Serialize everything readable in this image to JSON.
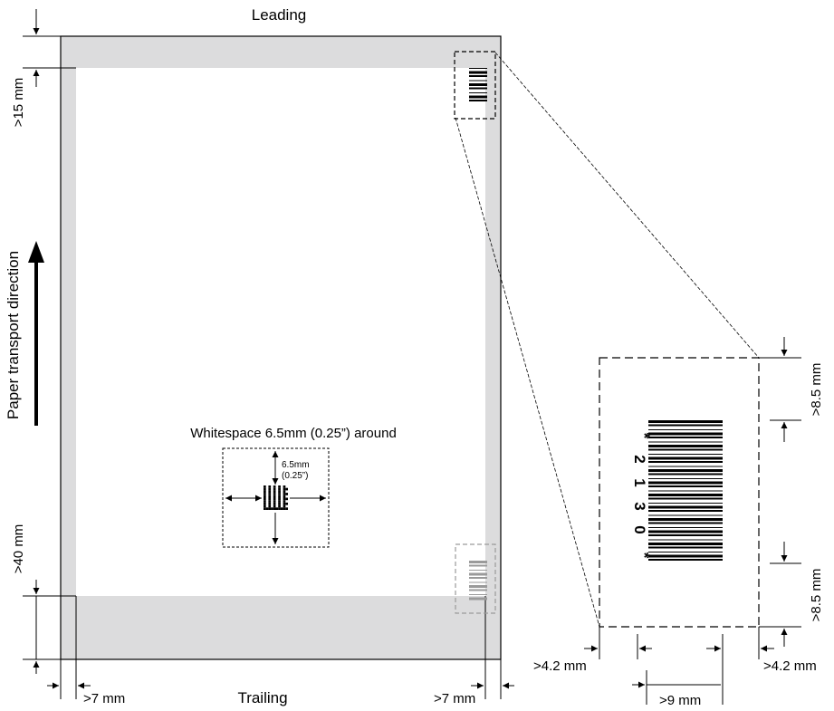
{
  "labels": {
    "leading": "Leading",
    "trailing": "Trailing",
    "transport": "Paper transport direction",
    "whitespace_title": "Whitespace 6.5mm (0.25”) around",
    "ws_mm": "6.5mm",
    "ws_in": "(0.25”)",
    "top_margin": ">15 mm",
    "bottom_margin": ">40 mm",
    "left_margin": ">7 mm",
    "right_margin": ">7 mm",
    "zoom_top": ">8.5 mm",
    "zoom_bottom": ">8.5 mm",
    "zoom_left": ">4.2 mm",
    "zoom_right": ">4.2 mm",
    "zoom_width": ">9 mm",
    "barcode_chars": [
      "*",
      "2",
      "1",
      "3",
      "0",
      "*"
    ]
  },
  "colors": {
    "margin_gray": "#dcdcdd",
    "line": "#000000",
    "ghost_barcode": "#9a9a9a"
  },
  "icons": {
    "transport_arrow": "arrow-up-icon",
    "datamatrix": "datamatrix-icon",
    "barcode": "barcode-icon"
  }
}
